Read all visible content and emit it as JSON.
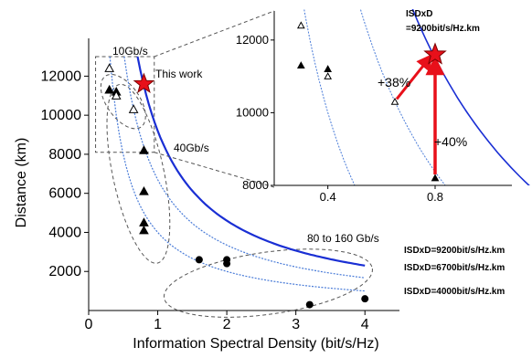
{
  "chart_data": {
    "type": "scatter",
    "title": "",
    "xlabel": "Information   Spectral   Density   (bit/s/Hz)",
    "ylabel": "Distance (km)",
    "xlim": [
      0,
      4.5
    ],
    "ylim": [
      0,
      13000
    ],
    "x_ticks": [
      "0",
      "1",
      "2",
      "3",
      "4"
    ],
    "y_ticks": [
      "2000",
      "4000",
      "6000",
      "8000",
      "10000",
      "12000"
    ],
    "grid": false,
    "series": [
      {
        "marker": "triangle-filled",
        "points": [
          [
            0.3,
            11300
          ],
          [
            0.4,
            11200
          ],
          [
            0.8,
            8200
          ],
          [
            0.8,
            6100
          ],
          [
            0.8,
            4500
          ],
          [
            0.8,
            4100
          ]
        ]
      },
      {
        "marker": "triangle-open",
        "points": [
          [
            0.3,
            12400
          ],
          [
            0.4,
            11000
          ],
          [
            0.65,
            10300
          ]
        ]
      },
      {
        "marker": "circle-filled",
        "points": [
          [
            1.6,
            2600
          ],
          [
            2.0,
            2600
          ],
          [
            2.0,
            2400
          ],
          [
            3.2,
            300
          ],
          [
            4.0,
            600
          ]
        ]
      },
      {
        "marker": "star-red",
        "name": "This work",
        "points": [
          [
            0.8,
            11600
          ]
        ]
      }
    ],
    "curves": [
      {
        "label": "ISDxD=9200bit/s/Hz.km",
        "product": 9200,
        "color": "#1a2fd4",
        "style": "solid"
      },
      {
        "label": "ISDxD=6700bit/s/Hz.km",
        "product": 6700,
        "color": "#4a7cd8",
        "style": "dotted"
      },
      {
        "label": "ISDxD=4000bit/s/Hz.km",
        "product": 4000,
        "color": "#4a7cd8",
        "style": "dotted"
      }
    ],
    "group_labels": [
      "10Gb/s",
      "40Gb/s",
      "80 to 160 Gb/s"
    ],
    "annotations": {
      "this_work": "This work"
    },
    "inset": {
      "xlim": [
        0.2,
        0.95
      ],
      "ylim": [
        8000,
        12800
      ],
      "x_ticks": [
        "0.4",
        "0.8"
      ],
      "y_ticks": [
        "8000",
        "10000",
        "12000"
      ],
      "curve_label_top": "ISDxD",
      "curve_label_bottom": "=9200bit/s/Hz.km",
      "gain_distance": "+38%",
      "gain_isd": "+40%"
    }
  }
}
